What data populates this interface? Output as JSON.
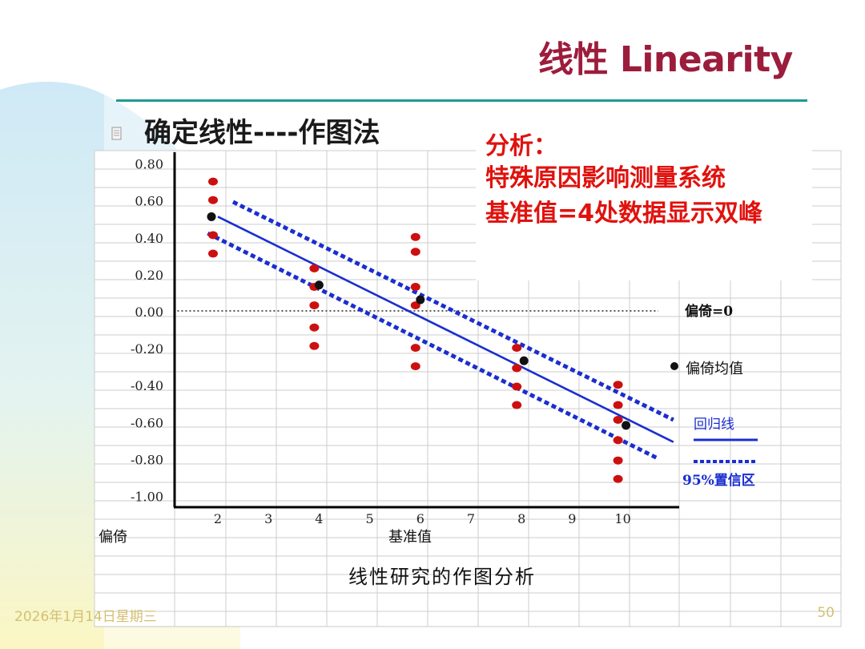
{
  "slide": {
    "title": "线性 Linearity",
    "bullet": "确定线性----作图法",
    "footer_date": "2026年1月14日星期三",
    "page_number": "50",
    "colors": {
      "title": "#9c1c3c",
      "rule": "#1c9a92",
      "note": "#e0120e",
      "footer": "#d4c070"
    }
  },
  "analysis_note": {
    "lines": [
      "分析：",
      "特殊原因影响测量系统",
      "基准值=4处数据显示双峰"
    ]
  },
  "chart_data": {
    "type": "scatter",
    "title": "线性研究的作图分析",
    "xlabel": "基准值",
    "ylabel": "偏倚",
    "x_ticks": [
      "2",
      "3",
      "4",
      "5",
      "6",
      "7",
      "8",
      "9",
      "10"
    ],
    "y_ticks": [
      "0.80",
      "0.60",
      "0.40",
      "0.20",
      "0.00",
      "-0.20",
      "-0.40",
      "-0.60",
      "-0.80",
      "-1.00"
    ],
    "ylim": [
      -1.0,
      0.8
    ],
    "xlim": [
      1.2,
      11.2
    ],
    "grid": true,
    "series": [
      {
        "name": "偏倚",
        "color": "#cc1010",
        "points": [
          [
            2,
            0.7
          ],
          [
            2,
            0.6
          ],
          [
            2,
            0.41
          ],
          [
            2,
            0.31
          ],
          [
            4,
            0.23
          ],
          [
            4,
            0.13
          ],
          [
            4,
            0.03
          ],
          [
            4,
            -0.09
          ],
          [
            4,
            -0.19
          ],
          [
            6,
            0.4
          ],
          [
            6,
            0.32
          ],
          [
            6,
            0.13
          ],
          [
            6,
            0.03
          ],
          [
            6,
            -0.2
          ],
          [
            6,
            -0.3
          ],
          [
            8,
            -0.2
          ],
          [
            8,
            -0.31
          ],
          [
            8,
            -0.41
          ],
          [
            8,
            -0.51
          ],
          [
            10,
            -0.4
          ],
          [
            10,
            -0.51
          ],
          [
            10,
            -0.59
          ],
          [
            10,
            -0.7
          ],
          [
            10,
            -0.81
          ],
          [
            10,
            -0.91
          ]
        ]
      },
      {
        "name": "偏倚均值",
        "color": "#111111",
        "points": [
          [
            2,
            0.51
          ],
          [
            4,
            0.14
          ],
          [
            6,
            0.06
          ],
          [
            8,
            -0.27
          ],
          [
            10,
            -0.62
          ]
        ]
      }
    ],
    "lines": [
      {
        "name": "偏倚=0",
        "style": "dotted",
        "color": "#222222",
        "points": [
          [
            1.2,
            0.0
          ],
          [
            10.7,
            0.0
          ]
        ]
      },
      {
        "name": "回归线",
        "style": "solid",
        "color": "#1a2ed0",
        "points": [
          [
            2.0,
            0.51
          ],
          [
            11.0,
            -0.71
          ]
        ]
      },
      {
        "name": "95%置信区",
        "style": "dashed",
        "color": "#1a2ed0",
        "points": [
          [
            2.3,
            0.59
          ],
          [
            11.0,
            -0.59
          ]
        ]
      },
      {
        "name": "95%置信区",
        "style": "dashed",
        "color": "#1a2ed0",
        "points": [
          [
            1.8,
            0.42
          ],
          [
            10.7,
            -0.8
          ]
        ]
      }
    ],
    "legend": {
      "position": "right",
      "items": [
        {
          "label": "偏倚=0",
          "kind": "text"
        },
        {
          "label": "偏倚均值",
          "kind": "dot",
          "color": "#111111"
        },
        {
          "label": "回归线",
          "kind": "solid",
          "color": "#1a2ed0"
        },
        {
          "label": "95%置信区",
          "kind": "dashed",
          "color": "#1a2ed0"
        }
      ]
    }
  }
}
